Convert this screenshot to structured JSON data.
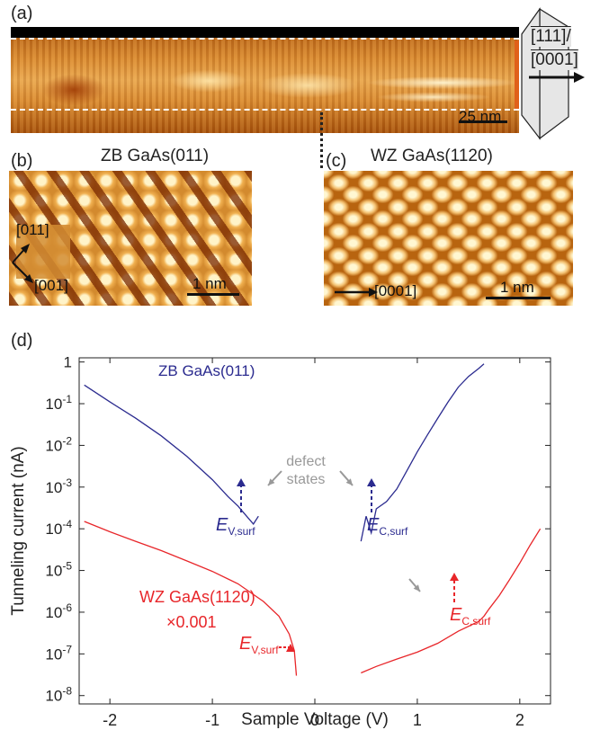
{
  "panels": {
    "a": {
      "label": "(a)",
      "scalebar": "25 nm",
      "dir_top": "[111]/",
      "dir_bottom": "[0001]"
    },
    "b": {
      "label": "(b)",
      "title": "ZB GaAs(011)",
      "dir_up": "[011]",
      "dir_down": "[001]",
      "scalebar": "1 nm"
    },
    "c": {
      "label": "(c)",
      "title": "WZ GaAs(1120)",
      "dir": "[0001]",
      "scalebar": "1 nm"
    },
    "d": {
      "label": "(d)"
    }
  },
  "chart_data": {
    "type": "line",
    "xlabel": "Sample Voltage (V)",
    "ylabel": "Tunneling current (nA)",
    "xlim": [
      -2.3,
      2.3
    ],
    "ylim_log10": [
      -8.2,
      0.1
    ],
    "yscale": "log",
    "x_ticks": [
      -2,
      -1,
      0,
      1,
      2
    ],
    "y_tick_labels": [
      "1",
      "10-1",
      "10-2",
      "10-3",
      "10-4",
      "10-5",
      "10-6",
      "10-7",
      "10-8"
    ],
    "series": [
      {
        "name": "ZB GaAs(011)",
        "color": "#2b2b8f",
        "segments": [
          {
            "x": [
              -2.25,
              -2.0,
              -1.75,
              -1.5,
              -1.25,
              -1.0,
              -0.85,
              -0.75,
              -0.7,
              -0.65,
              -0.6,
              -0.55
            ],
            "y": [
              0.28,
              0.11,
              0.045,
              0.017,
              0.0055,
              0.0015,
              0.0006,
              0.00035,
              0.00025,
              0.00018,
              0.00013,
              0.0002
            ]
          },
          {
            "x": [
              0.45,
              0.5,
              0.55,
              0.6,
              0.7,
              0.8,
              0.9,
              1.0,
              1.1,
              1.2,
              1.3,
              1.4,
              1.5,
              1.6,
              1.65
            ],
            "y": [
              5e-05,
              0.0002,
              8e-05,
              0.0003,
              0.00045,
              0.0009,
              0.0025,
              0.007,
              0.018,
              0.045,
              0.11,
              0.25,
              0.45,
              0.7,
              0.9
            ]
          }
        ]
      },
      {
        "name": "WZ GaAs(1120)",
        "color": "#e8262a",
        "segments": [
          {
            "x": [
              -2.25,
              -2.0,
              -1.75,
              -1.5,
              -1.25,
              -1.0,
              -0.75,
              -0.5,
              -0.35,
              -0.25,
              -0.2,
              -0.18
            ],
            "y": [
              0.00015,
              8.5e-05,
              5e-05,
              3e-05,
              1.7e-05,
              9.5e-06,
              4.8e-06,
              1.8e-06,
              8e-07,
              3e-07,
              1.2e-07,
              3e-08
            ]
          },
          {
            "x": [
              0.45,
              0.6,
              0.8,
              1.0,
              1.2,
              1.4,
              1.6,
              1.65,
              1.7,
              1.8,
              1.9,
              2.0,
              2.1,
              2.2
            ],
            "y": [
              3.5e-08,
              5e-08,
              7.5e-08,
              1.1e-07,
              1.8e-07,
              3.5e-07,
              6e-07,
              8e-07,
              1.2e-06,
              2.5e-06,
              6e-06,
              1.5e-05,
              4e-05,
              0.0001
            ]
          }
        ]
      }
    ],
    "annotations": {
      "zb_label": "ZB GaAs(011)",
      "wz_label": "WZ GaAs(1120)",
      "wz_scale": "×0.001",
      "defect": [
        "defect",
        "states"
      ],
      "ev_main": "E",
      "ev_sub": "V,surf",
      "ec_main": "E",
      "ec_sub": "C,surf"
    }
  }
}
